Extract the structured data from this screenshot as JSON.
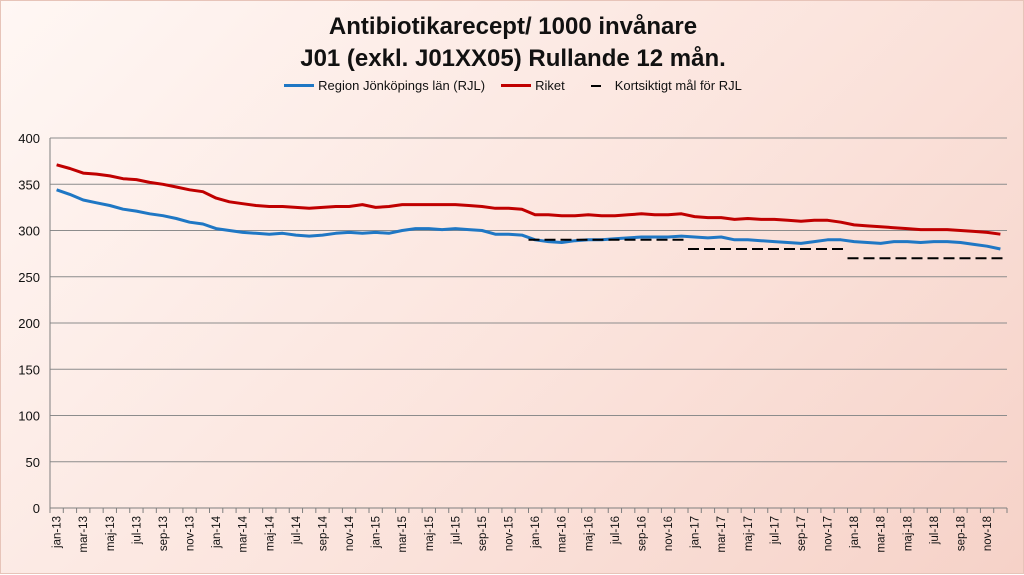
{
  "chart_data": {
    "type": "line",
    "title": [
      "Antibiotikarecept/ 1000 invånare",
      "J01 (exkl. J01XX05) Rullande 12 mån."
    ],
    "xlabel": "",
    "ylabel": "",
    "ylim": [
      0,
      400
    ],
    "yticks": [
      0,
      50,
      100,
      150,
      200,
      250,
      300,
      350,
      400
    ],
    "grid": true,
    "legend_position": "top",
    "categories": [
      "jan-13",
      "feb-13",
      "mar-13",
      "apr-13",
      "maj-13",
      "jun-13",
      "jul-13",
      "aug-13",
      "sep-13",
      "okt-13",
      "nov-13",
      "dec-13",
      "jan-14",
      "feb-14",
      "mar-14",
      "apr-14",
      "maj-14",
      "jun-14",
      "jul-14",
      "aug-14",
      "sep-14",
      "okt-14",
      "nov-14",
      "dec-14",
      "jan-15",
      "feb-15",
      "mar-15",
      "apr-15",
      "maj-15",
      "jun-15",
      "jul-15",
      "aug-15",
      "sep-15",
      "okt-15",
      "nov-15",
      "dec-15",
      "jan-16",
      "feb-16",
      "mar-16",
      "apr-16",
      "maj-16",
      "jun-16",
      "jul-16",
      "aug-16",
      "sep-16",
      "okt-16",
      "nov-16",
      "dec-16",
      "jan-17",
      "feb-17",
      "mar-17",
      "apr-17",
      "maj-17",
      "jun-17",
      "jul-17",
      "aug-17",
      "sep-17",
      "okt-17",
      "nov-17",
      "dec-17",
      "jan-18",
      "feb-18",
      "mar-18",
      "apr-18",
      "maj-18",
      "jun-18",
      "jul-18",
      "aug-18",
      "sep-18",
      "okt-18",
      "nov-18",
      "dec-18"
    ],
    "xtick_labels": [
      "jan-13",
      "mar-13",
      "maj-13",
      "jul-13",
      "sep-13",
      "nov-13",
      "jan-14",
      "mar-14",
      "maj-14",
      "jul-14",
      "sep-14",
      "nov-14",
      "jan-15",
      "mar-15",
      "maj-15",
      "jul-15",
      "sep-15",
      "nov-15",
      "jan-16",
      "mar-16",
      "maj-16",
      "jul-16",
      "sep-16",
      "nov-16",
      "jan-17",
      "mar-17",
      "maj-17",
      "jul-17",
      "sep-17",
      "nov-17",
      "jan-18",
      "mar-18",
      "maj-18",
      "jul-18",
      "sep-18",
      "nov-18"
    ],
    "series": [
      {
        "name": "Region Jönköpings län (RJL)",
        "color": "#1f77c4",
        "style": "solid",
        "values": [
          344,
          339,
          333,
          330,
          327,
          323,
          321,
          318,
          316,
          313,
          309,
          307,
          302,
          300,
          298,
          297,
          296,
          297,
          295,
          294,
          295,
          297,
          298,
          297,
          298,
          297,
          300,
          302,
          302,
          301,
          302,
          301,
          300,
          296,
          296,
          295,
          290,
          288,
          287,
          289,
          290,
          290,
          291,
          292,
          293,
          293,
          293,
          294,
          293,
          292,
          293,
          290,
          290,
          289,
          288,
          287,
          286,
          288,
          290,
          290,
          288,
          287,
          286,
          288,
          288,
          287,
          288,
          288,
          287,
          285,
          283,
          280
        ]
      },
      {
        "name": "Riket",
        "color": "#c00000",
        "style": "solid",
        "values": [
          371,
          367,
          362,
          361,
          359,
          356,
          355,
          352,
          350,
          347,
          344,
          342,
          335,
          331,
          329,
          327,
          326,
          326,
          325,
          324,
          325,
          326,
          326,
          328,
          325,
          326,
          328,
          328,
          328,
          328,
          328,
          327,
          326,
          324,
          324,
          323,
          317,
          317,
          316,
          316,
          317,
          316,
          316,
          317,
          318,
          317,
          317,
          318,
          315,
          314,
          314,
          312,
          313,
          312,
          312,
          311,
          310,
          311,
          311,
          309,
          306,
          305,
          304,
          303,
          302,
          301,
          301,
          301,
          300,
          299,
          298,
          296
        ]
      },
      {
        "name": "Kortsiktigt mål för RJL",
        "color": "#000000",
        "style": "dashed",
        "segments": [
          {
            "from": "jan-16",
            "to": "dec-16",
            "value": 290
          },
          {
            "from": "jan-17",
            "to": "dec-17",
            "value": 280
          },
          {
            "from": "jan-18",
            "to": "dec-18",
            "value": 270
          }
        ]
      }
    ]
  }
}
